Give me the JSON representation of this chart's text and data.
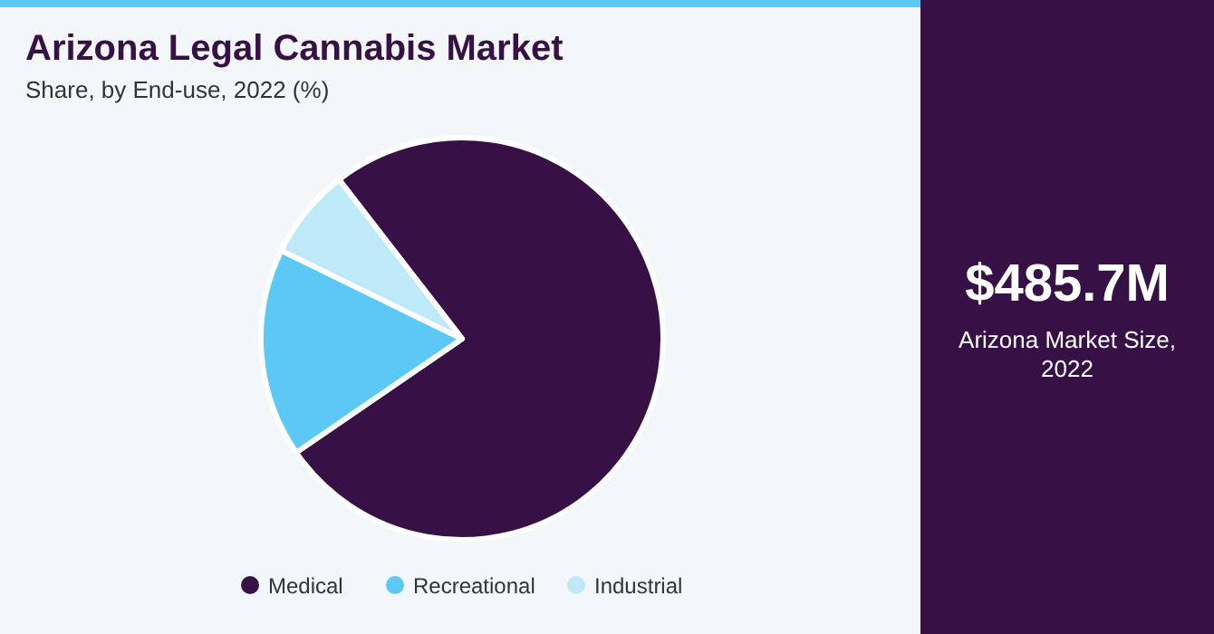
{
  "chart_data": {
    "type": "pie",
    "title": "Arizona Legal Cannabis Market",
    "subtitle": "Share, by End-use, 2022 (%)",
    "categories": [
      "Medical",
      "Recreational",
      "Industrial"
    ],
    "values": [
      75.9,
      16.8,
      7.3
    ],
    "colors": [
      "#371145",
      "#5bc8f5",
      "#bde9f8"
    ],
    "legend": "bottom",
    "annotations": [
      "$485.7M",
      "Arizona Market Size, 2022"
    ]
  }
}
